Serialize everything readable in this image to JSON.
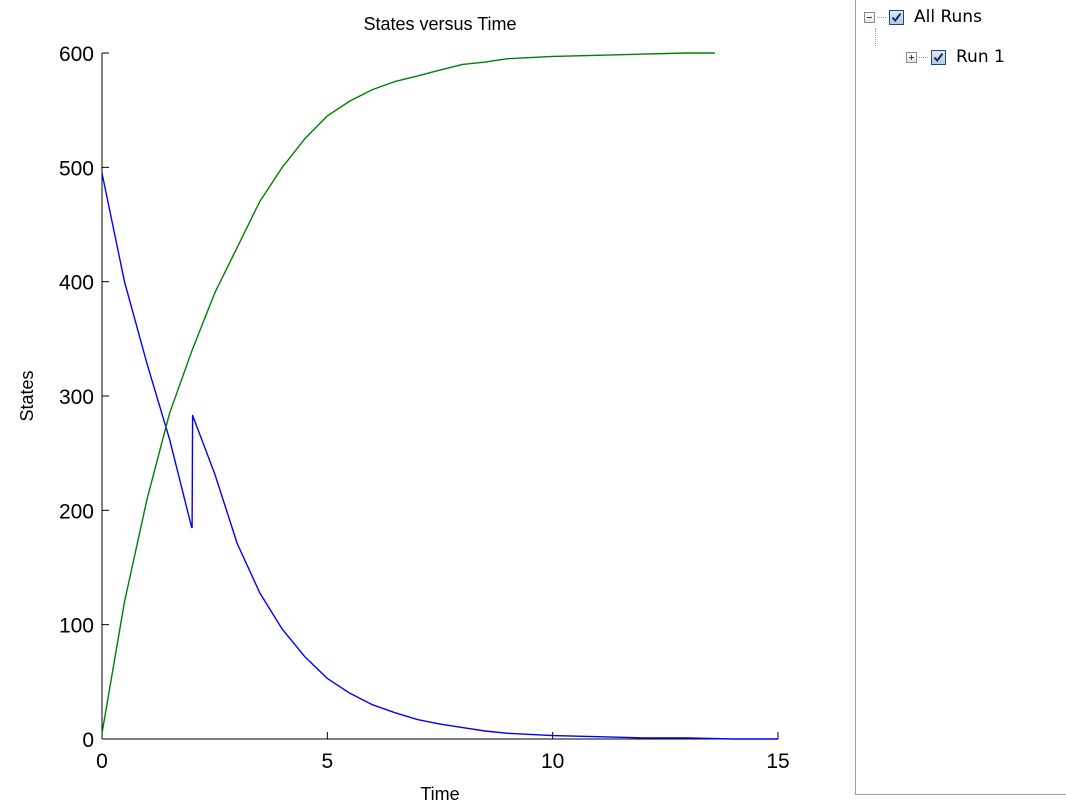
{
  "chart_data": {
    "type": "line",
    "title": "States versus Time",
    "xlabel": "Time",
    "ylabel": "States",
    "xlim": [
      0,
      15
    ],
    "ylim": [
      0,
      600
    ],
    "xticks": [
      0,
      5,
      10,
      15
    ],
    "yticks": [
      0,
      100,
      200,
      300,
      400,
      500,
      600
    ],
    "grid": false,
    "legend": "none",
    "series": [
      {
        "color": "#0000ff",
        "x": [
          0,
          0.5,
          1,
          1.5,
          1.99,
          2.0,
          2.01,
          2.5,
          3,
          3.5,
          4,
          4.5,
          5,
          5.5,
          6,
          6.5,
          7,
          7.5,
          8,
          8.5,
          9,
          9.5,
          10,
          11,
          12,
          13,
          14,
          15
        ],
        "y": [
          495,
          400,
          328,
          262,
          185,
          185,
          283,
          232,
          171,
          128,
          96,
          72,
          53,
          40,
          30,
          23,
          17,
          13,
          10,
          7,
          5,
          4,
          3,
          2,
          1,
          1,
          0,
          0
        ]
      },
      {
        "color": "#008000",
        "x": [
          0,
          0.5,
          1,
          1.5,
          2,
          2.5,
          3,
          3.5,
          4,
          4.5,
          5,
          5.5,
          6,
          6.5,
          7,
          7.5,
          8,
          8.5,
          9,
          9.5,
          10,
          11,
          12,
          13,
          13.6
        ],
        "y": [
          5,
          120,
          210,
          285,
          340,
          390,
          430,
          470,
          500,
          525,
          545,
          558,
          568,
          575,
          580,
          585,
          590,
          592,
          595,
          596,
          597,
          598,
          599,
          600,
          600
        ]
      }
    ]
  },
  "tree": {
    "root_label": "All Runs",
    "child_label": "Run 1"
  }
}
